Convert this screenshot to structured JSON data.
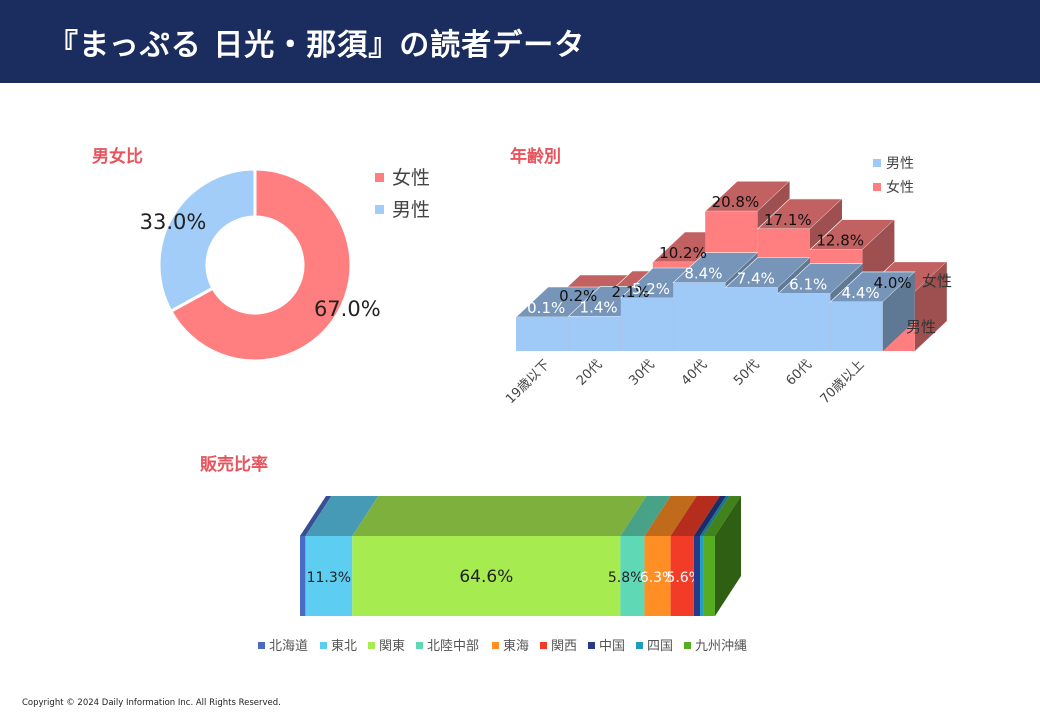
{
  "header": {
    "title": "『まっぷる 日光・那須』の読者データ"
  },
  "footer": {
    "copyright": "Copyright © 2024 Daily Information Inc. All Rights Reserved."
  },
  "colors": {
    "header_bg": "#1b2d5e",
    "accent_title": "#e8535c",
    "female": "#f08080",
    "male": "#9fcaf8"
  },
  "chart_data": [
    {
      "id": "gender",
      "type": "pie",
      "title": "男女比",
      "legend_position": "right",
      "labels": [
        "女性",
        "男性"
      ],
      "values": [
        67.0,
        33.0
      ],
      "value_labels": [
        "67.0%",
        "33.0%"
      ],
      "colors": [
        "#ff7f80",
        "#a3cdf9"
      ]
    },
    {
      "id": "age",
      "type": "bar",
      "title": "年齢別",
      "legend_position": "top-right",
      "categories": [
        "19歳以下",
        "20代",
        "30代",
        "40代",
        "50代",
        "60代",
        "70歳以上"
      ],
      "series": [
        {
          "name": "男性",
          "values": [
            0.1,
            1.4,
            5.2,
            8.4,
            7.4,
            6.1,
            4.4
          ],
          "value_labels": [
            "0.1%",
            "1.4%",
            "5.2%",
            "8.4%",
            "7.4%",
            "6.1%",
            "4.4%"
          ],
          "color": "#9fcaf8"
        },
        {
          "name": "女性",
          "values": [
            0.2,
            2.1,
            10.2,
            20.8,
            17.1,
            12.8,
            4.0
          ],
          "value_labels": [
            "0.2%",
            "2.1%",
            "10.2%",
            "20.8%",
            "17.1%",
            "12.8%",
            "4.0%"
          ],
          "color": "#ff7f80"
        }
      ],
      "depth_labels": [
        "男性",
        "女性"
      ]
    },
    {
      "id": "sales",
      "type": "bar",
      "subtype": "stacked-100",
      "title": "販売比率",
      "legend_position": "bottom",
      "categories": [
        "北海道",
        "東北",
        "関東",
        "北陸中部",
        "東海",
        "関西",
        "中国",
        "四国",
        "九州沖縄"
      ],
      "values": [
        1.3,
        11.3,
        64.6,
        5.8,
        6.3,
        5.6,
        1.5,
        0.8,
        2.8
      ],
      "value_labels": [
        "",
        "11.3%",
        "64.6%",
        "5.8%",
        "6.3%",
        "5.6%",
        "",
        "",
        ""
      ],
      "colors": [
        "#4a6bc4",
        "#5ecdf2",
        "#a6eb50",
        "#5fd8b5",
        "#ff8f24",
        "#f23c28",
        "#253a8a",
        "#1f9cc0",
        "#56ad22"
      ]
    }
  ]
}
